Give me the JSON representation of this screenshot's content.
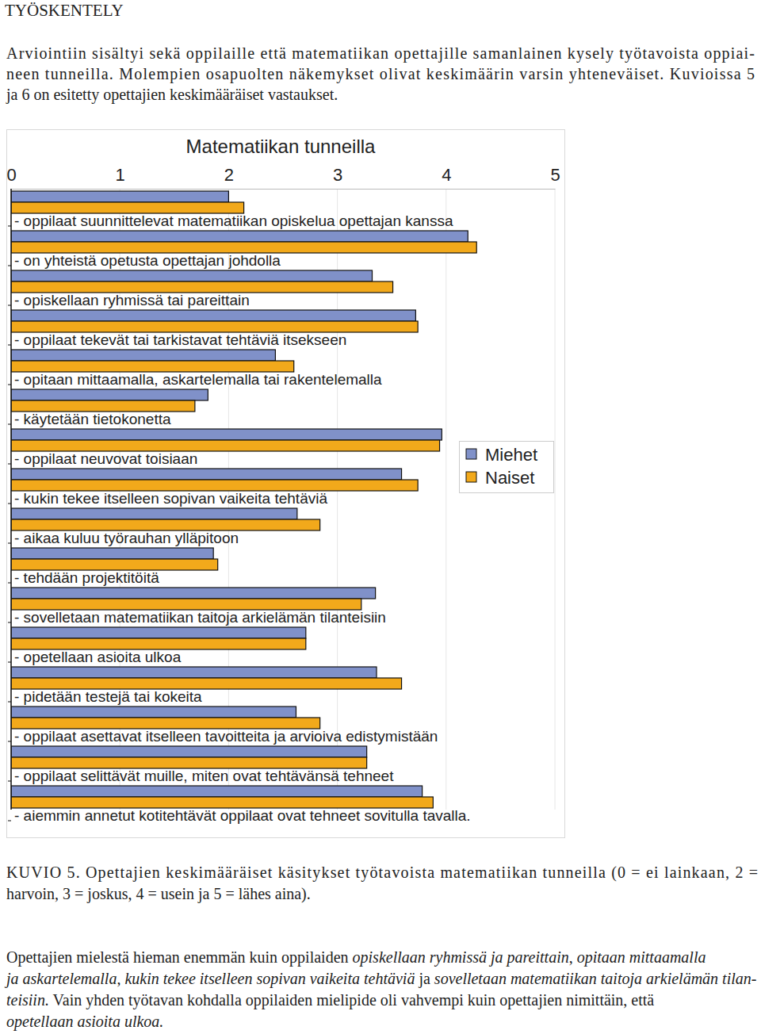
{
  "heading": "TYÖSKENTELY",
  "intro": [
    "Arviointiin sisältyi sekä oppilaille että matematiikan opettajille samanlainen kysely työtavoista oppiai-",
    "neen tunneilla. Molempien osapuolten näkemykset olivat keskimäärin varsin yhteneväiset. Kuvioissa 5",
    "ja 6 on esitetty opettajien keskimääräiset vastaukset."
  ],
  "chart_data": {
    "type": "bar",
    "orientation": "horizontal",
    "title": "Matematiikan tunneilla",
    "categories": [
      "- oppilaat suunnittelevat matematiikan opiskelua opettajan kanssa",
      "- on yhteistä opetusta opettajan johdolla",
      "- opiskellaan ryhmissä tai pareittain",
      "- oppilaat tekevät tai tarkistavat tehtäviä itsekseen",
      "- opitaan mittaamalla, askartelemalla tai rakentelemalla",
      "- käytetään tietokonetta",
      "- oppilaat neuvovat toisiaan",
      "- kukin tekee itselleen sopivan vaikeita tehtäviä",
      "- aikaa kuluu työrauhan ylläpitoon",
      "- tehdään projektitöitä",
      "- sovelletaan matematiikan taitoja arkielämän tilanteisiin",
      "- opetellaan asioita ulkoa",
      "- pidetään testejä tai kokeita",
      "- oppilaat asettavat itselleen tavoitteita ja arvioiva edistymistään",
      "- oppilaat selittävät muille, miten ovat tehtävänsä tehneet",
      "- aiemmin annetut kotitehtävät oppilaat ovat tehneet sovitulla tavalla."
    ],
    "series": [
      {
        "name": "Miehet",
        "color": "#8091c9",
        "values": [
          2.0,
          4.2,
          3.32,
          3.72,
          2.43,
          1.81,
          3.96,
          3.59,
          2.63,
          1.86,
          3.35,
          2.71,
          3.36,
          2.62,
          3.27,
          3.78
        ]
      },
      {
        "name": "Naiset",
        "color": "#f2a91b",
        "values": [
          2.14,
          4.28,
          3.51,
          3.74,
          2.6,
          1.69,
          3.94,
          3.74,
          2.84,
          1.9,
          3.22,
          2.71,
          3.59,
          2.84,
          3.27,
          3.88
        ]
      }
    ],
    "xlim": [
      0,
      5
    ],
    "xticks": [
      0,
      1,
      2,
      3,
      4,
      5
    ],
    "grid": true,
    "legend": "right"
  },
  "caption": [
    "KUVIO 5. Opettajien keskimääräiset käsitykset työtavoista matematiikan tunneilla (0 = ei lainkaan, 2 =",
    "harvoin, 3 = joskus, 4 = usein ja 5 = lähes aina)."
  ],
  "paragraph": [
    [
      {
        "text": "Opettajien mielestä hieman enemmän kuin oppilaiden ",
        "italic": false
      },
      {
        "text": "opiskellaan ryhmissä ja pareittain",
        "italic": true
      },
      {
        "text": ", ",
        "italic": false
      },
      {
        "text": "opitaan mittaamalla",
        "italic": true
      }
    ],
    [
      {
        "text": "ja askartelemalla",
        "italic": true
      },
      {
        "text": ", ",
        "italic": false
      },
      {
        "text": "kukin tekee itselleen sopivan vaikeita tehtäviä",
        "italic": true
      },
      {
        "text": " ja ",
        "italic": false
      },
      {
        "text": "sovelletaan matematiikan taitoja arkielämän tilan-",
        "italic": true
      }
    ],
    [
      {
        "text": "teisiin.",
        "italic": true
      },
      {
        "text": " Vain yhden työtavan kohdalla oppilaiden mielipide oli vahvempi kuin opettajien nimittäin, että",
        "italic": false
      }
    ],
    [
      {
        "text": "opetellaan asioita ulkoa.",
        "italic": true
      }
    ]
  ]
}
